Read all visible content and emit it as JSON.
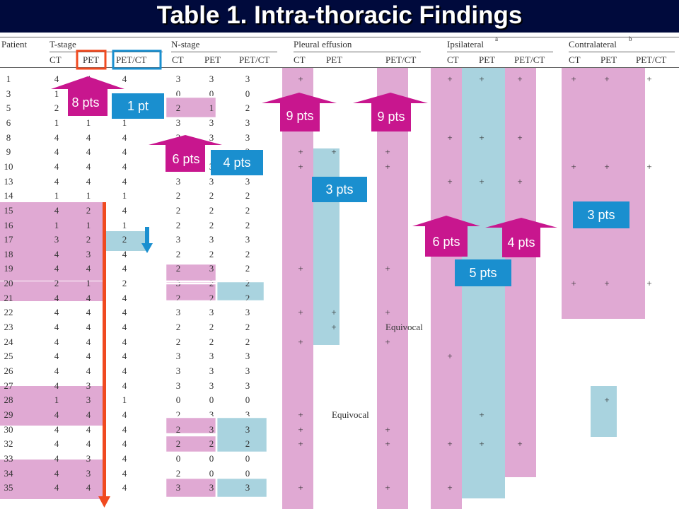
{
  "title": "Table 1. Intra-thoracic Findings",
  "headers": {
    "patient": "Patient",
    "groups": [
      "T-stage",
      "N-stage",
      "Pleural effusion",
      "Ipsilateral",
      "Contralateral"
    ],
    "ipsi_sup": "a",
    "contra_sup": "b",
    "subs": [
      "CT",
      "PET",
      "PET/CT"
    ]
  },
  "rows": [
    {
      "p": "1",
      "t": [
        "4",
        "4",
        "4"
      ],
      "n": [
        "3",
        "3",
        "3"
      ],
      "pe": [
        "+",
        "",
        ""
      ],
      "ip": [
        "+",
        "+",
        "+"
      ],
      "co": [
        "+",
        "+",
        "+"
      ]
    },
    {
      "p": "3",
      "t": [
        "1",
        "1",
        ""
      ],
      "n": [
        "0",
        "0",
        "0"
      ],
      "pe": [
        "",
        "",
        ""
      ],
      "ip": [
        "",
        "",
        ""
      ],
      "co": [
        "",
        "",
        ""
      ]
    },
    {
      "p": "5",
      "t": [
        "2",
        "",
        ""
      ],
      "n": [
        "2",
        "1",
        "2"
      ],
      "pe": [
        "",
        "",
        ""
      ],
      "ip": [
        "",
        "",
        ""
      ],
      "co": [
        "",
        "",
        ""
      ]
    },
    {
      "p": "6",
      "t": [
        "1",
        "1",
        "1"
      ],
      "n": [
        "3",
        "3",
        "3"
      ],
      "pe": [
        "",
        "",
        ""
      ],
      "ip": [
        "",
        "",
        ""
      ],
      "co": [
        "",
        "",
        ""
      ]
    },
    {
      "p": "8",
      "t": [
        "4",
        "4",
        "4"
      ],
      "n": [
        "3",
        "3",
        "3"
      ],
      "pe": [
        "",
        "",
        ""
      ],
      "ip": [
        "+",
        "+",
        "+"
      ],
      "co": [
        "",
        "",
        ""
      ]
    },
    {
      "p": "9",
      "t": [
        "4",
        "4",
        "4"
      ],
      "n": [
        "3",
        "",
        "3"
      ],
      "pe": [
        "+",
        "+",
        "+"
      ],
      "ip": [
        "",
        "",
        ""
      ],
      "co": [
        "",
        "",
        ""
      ]
    },
    {
      "p": "10",
      "t": [
        "4",
        "4",
        "4"
      ],
      "n": [
        "3",
        "3",
        "3"
      ],
      "pe": [
        "+",
        "",
        "+"
      ],
      "ip": [
        "",
        "",
        ""
      ],
      "co": [
        "+",
        "+",
        "+"
      ]
    },
    {
      "p": "13",
      "t": [
        "4",
        "4",
        "4"
      ],
      "n": [
        "3",
        "3",
        "3"
      ],
      "pe": [
        "",
        "",
        ""
      ],
      "ip": [
        "+",
        "+",
        "+"
      ],
      "co": [
        "",
        "",
        ""
      ]
    },
    {
      "p": "14",
      "t": [
        "1",
        "1",
        "1"
      ],
      "n": [
        "2",
        "2",
        "2"
      ],
      "pe": [
        "",
        "",
        ""
      ],
      "ip": [
        "",
        "",
        ""
      ],
      "co": [
        "",
        "",
        ""
      ]
    },
    {
      "p": "15",
      "t": [
        "4",
        "2",
        "4"
      ],
      "n": [
        "2",
        "2",
        "2"
      ],
      "pe": [
        "",
        "",
        ""
      ],
      "ip": [
        "",
        "",
        ""
      ],
      "co": [
        "",
        "",
        ""
      ]
    },
    {
      "p": "16",
      "t": [
        "1",
        "1",
        "1"
      ],
      "n": [
        "2",
        "2",
        "2"
      ],
      "pe": [
        "",
        "",
        ""
      ],
      "ip": [
        "",
        "",
        ""
      ],
      "co": [
        "",
        "",
        ""
      ]
    },
    {
      "p": "17",
      "t": [
        "3",
        "2",
        "2"
      ],
      "n": [
        "3",
        "3",
        "3"
      ],
      "pe": [
        "",
        "",
        ""
      ],
      "ip": [
        "",
        "",
        ""
      ],
      "co": [
        "",
        "",
        ""
      ]
    },
    {
      "p": "18",
      "t": [
        "4",
        "3",
        "4"
      ],
      "n": [
        "2",
        "2",
        "2"
      ],
      "pe": [
        "",
        "",
        ""
      ],
      "ip": [
        "",
        "",
        ""
      ],
      "co": [
        "",
        "",
        ""
      ]
    },
    {
      "p": "19",
      "t": [
        "4",
        "4",
        "4"
      ],
      "n": [
        "2",
        "3",
        "2"
      ],
      "pe": [
        "+",
        "",
        "+"
      ],
      "ip": [
        "",
        "",
        ""
      ],
      "co": [
        "",
        "",
        ""
      ]
    },
    {
      "p": "20",
      "t": [
        "2",
        "1",
        "2"
      ],
      "n": [
        "3",
        "2",
        "2"
      ],
      "pe": [
        "",
        "",
        ""
      ],
      "ip": [
        "",
        "",
        ""
      ],
      "co": [
        "+",
        "+",
        "+"
      ]
    },
    {
      "p": "21",
      "t": [
        "4",
        "4",
        "4"
      ],
      "n": [
        "2",
        "2",
        "2"
      ],
      "pe": [
        "",
        "",
        ""
      ],
      "ip": [
        "",
        "",
        ""
      ],
      "co": [
        "",
        "",
        ""
      ]
    },
    {
      "p": "22",
      "t": [
        "4",
        "4",
        "4"
      ],
      "n": [
        "3",
        "3",
        "3"
      ],
      "pe": [
        "+",
        "+",
        "+"
      ],
      "ip": [
        "",
        "",
        ""
      ],
      "co": [
        "",
        "",
        ""
      ]
    },
    {
      "p": "23",
      "t": [
        "4",
        "4",
        "4"
      ],
      "n": [
        "2",
        "2",
        "2"
      ],
      "pe": [
        "",
        "+",
        "Equivocal"
      ],
      "ip": [
        "",
        "",
        ""
      ],
      "co": [
        "",
        "",
        ""
      ]
    },
    {
      "p": "24",
      "t": [
        "4",
        "4",
        "4"
      ],
      "n": [
        "2",
        "2",
        "2"
      ],
      "pe": [
        "+",
        "",
        "+"
      ],
      "ip": [
        "",
        "",
        ""
      ],
      "co": [
        "",
        "",
        ""
      ]
    },
    {
      "p": "25",
      "t": [
        "4",
        "4",
        "4"
      ],
      "n": [
        "3",
        "3",
        "3"
      ],
      "pe": [
        "",
        "",
        ""
      ],
      "ip": [
        "+",
        "",
        ""
      ],
      "co": [
        "",
        "",
        ""
      ]
    },
    {
      "p": "26",
      "t": [
        "4",
        "4",
        "4"
      ],
      "n": [
        "3",
        "3",
        "3"
      ],
      "pe": [
        "",
        "",
        ""
      ],
      "ip": [
        "",
        "",
        ""
      ],
      "co": [
        "",
        "",
        ""
      ]
    },
    {
      "p": "27",
      "t": [
        "4",
        "3",
        "4"
      ],
      "n": [
        "3",
        "3",
        "3"
      ],
      "pe": [
        "",
        "",
        ""
      ],
      "ip": [
        "",
        "",
        ""
      ],
      "co": [
        "",
        "",
        ""
      ]
    },
    {
      "p": "28",
      "t": [
        "1",
        "3",
        "1"
      ],
      "n": [
        "0",
        "0",
        "0"
      ],
      "pe": [
        "",
        "",
        ""
      ],
      "ip": [
        "",
        "",
        ""
      ],
      "co": [
        "",
        "+",
        ""
      ]
    },
    {
      "p": "29",
      "t": [
        "4",
        "4",
        "4"
      ],
      "n": [
        "2",
        "3",
        "3"
      ],
      "pe": [
        "+",
        "Equivocal",
        ""
      ],
      "ip": [
        "",
        "+",
        ""
      ],
      "co": [
        "",
        "",
        ""
      ]
    },
    {
      "p": "30",
      "t": [
        "4",
        "4",
        "4"
      ],
      "n": [
        "2",
        "3",
        "3"
      ],
      "pe": [
        "+",
        "",
        "+"
      ],
      "ip": [
        "",
        "",
        ""
      ],
      "co": [
        "",
        "",
        ""
      ]
    },
    {
      "p": "32",
      "t": [
        "4",
        "4",
        "4"
      ],
      "n": [
        "2",
        "2",
        "2"
      ],
      "pe": [
        "+",
        "",
        "+"
      ],
      "ip": [
        "+",
        "+",
        "+"
      ],
      "co": [
        "",
        "",
        ""
      ]
    },
    {
      "p": "33",
      "t": [
        "4",
        "3",
        "4"
      ],
      "n": [
        "0",
        "0",
        "0"
      ],
      "pe": [
        "",
        "",
        ""
      ],
      "ip": [
        "",
        "",
        ""
      ],
      "co": [
        "",
        "",
        ""
      ]
    },
    {
      "p": "34",
      "t": [
        "4",
        "3",
        "4"
      ],
      "n": [
        "2",
        "0",
        "0"
      ],
      "pe": [
        "",
        "",
        ""
      ],
      "ip": [
        "",
        "",
        ""
      ],
      "co": [
        "",
        "",
        ""
      ]
    },
    {
      "p": "35",
      "t": [
        "4",
        "4",
        "4"
      ],
      "n": [
        "3",
        "3",
        "3"
      ],
      "pe": [
        "+",
        "",
        "+"
      ],
      "ip": [
        "+",
        "",
        ""
      ],
      "co": [
        "",
        "",
        ""
      ]
    }
  ],
  "annotations": {
    "t_pet_up": "8 pts",
    "t_petct": "1 pt",
    "n_up": "6 pts",
    "n_petct": "4 pts",
    "pe_ct_up": "9 pts",
    "pe_petct_up": "9 pts",
    "pe_pet": "3 pts",
    "contra": "3 pts",
    "ipsi_ct_up": "6 pts",
    "ipsi_petct_up": "4 pts",
    "ipsi_pet": "5 pts"
  },
  "colors": {
    "background": "#000a3c",
    "pink_highlight": "#e0a9d3",
    "blue_highlight": "#a9d3df",
    "magenta": "#c8168e",
    "cyan": "#1a8fcf",
    "orange": "#f04a20"
  }
}
